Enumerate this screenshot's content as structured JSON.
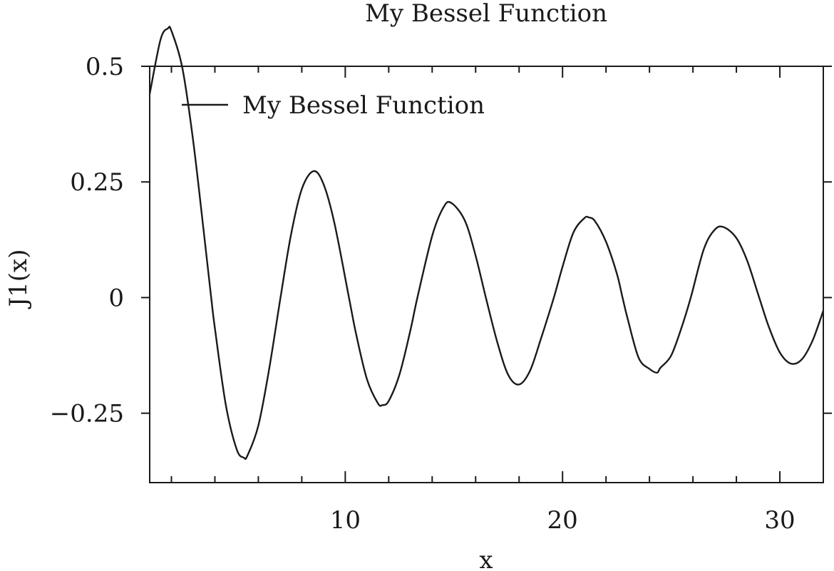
{
  "chart_data": {
    "type": "line",
    "title": "My Bessel Function",
    "xlabel": "x",
    "ylabel": "J1(x)",
    "xlim": [
      1,
      32
    ],
    "ylim": [
      -0.4,
      0.5
    ],
    "x_major_ticks": [
      10,
      20,
      30
    ],
    "x_minor_ticks": [
      2,
      4,
      6,
      8,
      12,
      14,
      16,
      18,
      22,
      24,
      26,
      28,
      32
    ],
    "y_major_ticks": [
      -0.25,
      0,
      0.25,
      0.5
    ],
    "x_tick_labels": [
      "10",
      "20",
      "30"
    ],
    "y_tick_labels": [
      "−0.25",
      "0",
      "0.25",
      "0.5"
    ],
    "legend_placement": "top-left",
    "grid": false,
    "line_color": "#1a1a1a",
    "series": [
      {
        "name": "My Bessel Function",
        "x": [
          1,
          1.5,
          1.84,
          2,
          2.5,
          3,
          3.5,
          3.83,
          4,
          4.5,
          5,
          5.33,
          5.5,
          6,
          6.5,
          7.02,
          7.5,
          8,
          8.54,
          9,
          9.5,
          10.17,
          10.5,
          11,
          11.5,
          11.71,
          12,
          12.5,
          13,
          13.32,
          14,
          14.5,
          14.86,
          15.5,
          16,
          16.47,
          17,
          17.5,
          18,
          18.5,
          19,
          19.6,
          20,
          20.5,
          21,
          21.21,
          21.5,
          22,
          22.5,
          22.76,
          23,
          23.5,
          24,
          24.35,
          24.5,
          25,
          25.5,
          25.9,
          26.5,
          27,
          27.42,
          28,
          28.5,
          29.05,
          29.5,
          30,
          30.5,
          31,
          31.5,
          32
        ],
        "y": [
          0.4401,
          0.5579,
          0.5819,
          0.5767,
          0.4971,
          0.3391,
          0.1374,
          0.0,
          -0.066,
          -0.2311,
          -0.3276,
          -0.3461,
          -0.3414,
          -0.2767,
          -0.1538,
          0.0,
          0.1352,
          0.2346,
          0.2733,
          0.2453,
          0.1613,
          0.0,
          -0.0789,
          -0.1768,
          -0.2284,
          -0.2325,
          -0.2234,
          -0.1655,
          -0.0703,
          0.0,
          0.1334,
          0.1934,
          0.2052,
          0.1668,
          0.0904,
          0.0,
          -0.097,
          -0.1672,
          -0.1879,
          -0.1585,
          -0.0897,
          0.0,
          0.0668,
          0.1407,
          0.1716,
          0.1733,
          0.1648,
          0.1207,
          0.0516,
          0.0,
          -0.0465,
          -0.1301,
          -0.1542,
          -0.1623,
          -0.1521,
          -0.1251,
          -0.0615,
          0.0,
          0.1045,
          0.1466,
          0.1522,
          0.1287,
          0.0793,
          0.0,
          -0.0642,
          -0.1188,
          -0.1426,
          -0.1341,
          -0.0936,
          -0.0284
        ]
      }
    ]
  }
}
